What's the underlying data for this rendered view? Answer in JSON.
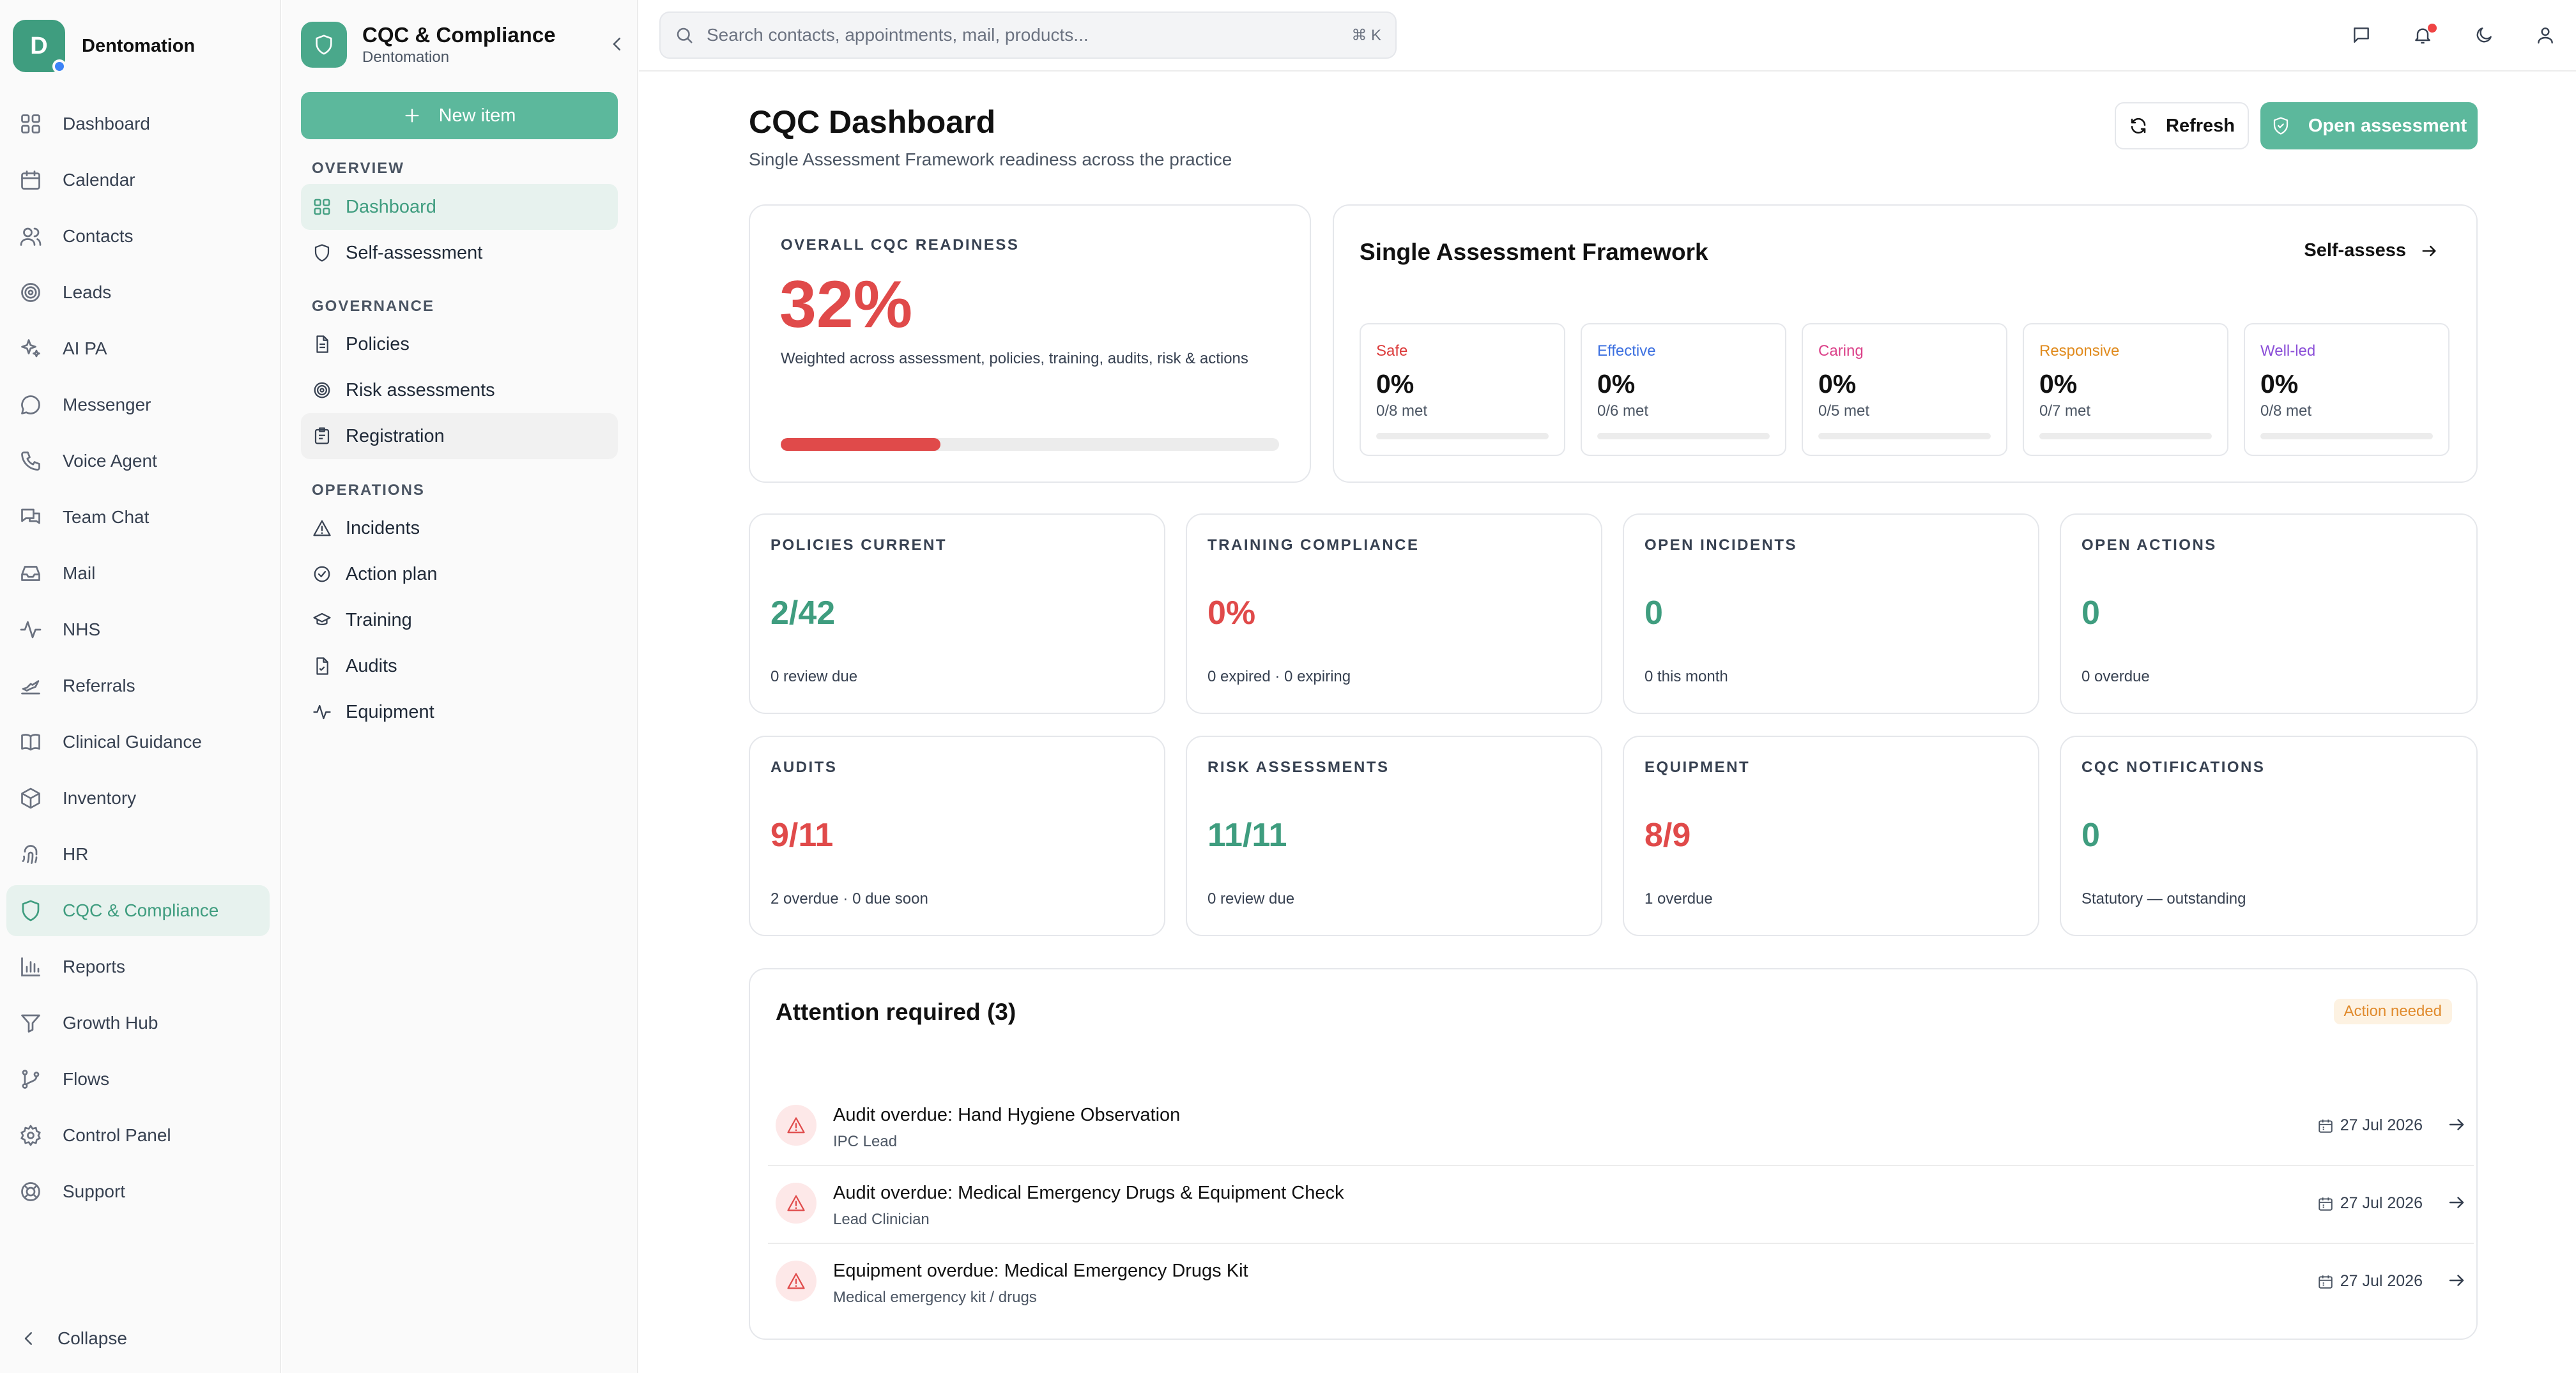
{
  "brand": {
    "initial": "D",
    "name": "Dentomation"
  },
  "sidebar": {
    "items": [
      {
        "id": "dashboard",
        "label": "Dashboard",
        "icon": "grid-icon"
      },
      {
        "id": "calendar",
        "label": "Calendar",
        "icon": "calendar-icon"
      },
      {
        "id": "contacts",
        "label": "Contacts",
        "icon": "users-icon"
      },
      {
        "id": "leads",
        "label": "Leads",
        "icon": "target-icon"
      },
      {
        "id": "ai-pa",
        "label": "AI PA",
        "icon": "sparkles-icon"
      },
      {
        "id": "messenger",
        "label": "Messenger",
        "icon": "message-circle-icon"
      },
      {
        "id": "voice-agent",
        "label": "Voice Agent",
        "icon": "phone-icon"
      },
      {
        "id": "team-chat",
        "label": "Team Chat",
        "icon": "messages-icon"
      },
      {
        "id": "mail",
        "label": "Mail",
        "icon": "inbox-icon"
      },
      {
        "id": "nhs",
        "label": "NHS",
        "icon": "activity-icon"
      },
      {
        "id": "referrals",
        "label": "Referrals",
        "icon": "send-icon"
      },
      {
        "id": "clinical-guidance",
        "label": "Clinical Guidance",
        "icon": "book-icon"
      },
      {
        "id": "inventory",
        "label": "Inventory",
        "icon": "package-icon"
      },
      {
        "id": "hr",
        "label": "HR",
        "icon": "fingerprint-icon"
      },
      {
        "id": "cqc-compliance",
        "label": "CQC & Compliance",
        "icon": "shield-icon",
        "active": true
      },
      {
        "id": "reports",
        "label": "Reports",
        "icon": "bar-chart-icon"
      },
      {
        "id": "growth-hub",
        "label": "Growth Hub",
        "icon": "funnel-icon"
      },
      {
        "id": "flows",
        "label": "Flows",
        "icon": "git-branch-icon"
      },
      {
        "id": "control-panel",
        "label": "Control Panel",
        "icon": "gear-icon"
      },
      {
        "id": "support",
        "label": "Support",
        "icon": "lifebuoy-icon"
      }
    ],
    "collapse_label": "Collapse"
  },
  "panel": {
    "title": "CQC & Compliance",
    "subtitle": "Dentomation",
    "new_item_label": "New item",
    "sections": [
      {
        "label": "OVERVIEW",
        "items": [
          {
            "label": "Dashboard",
            "icon": "grid-icon",
            "active": true
          },
          {
            "label": "Self-assessment",
            "icon": "shield-icon"
          }
        ]
      },
      {
        "label": "GOVERNANCE",
        "items": [
          {
            "label": "Policies",
            "icon": "file-text-icon"
          },
          {
            "label": "Risk assessments",
            "icon": "target-icon"
          },
          {
            "label": "Registration",
            "icon": "clipboard-icon",
            "hover": true
          }
        ]
      },
      {
        "label": "OPERATIONS",
        "items": [
          {
            "label": "Incidents",
            "icon": "alert-triangle-icon"
          },
          {
            "label": "Action plan",
            "icon": "check-circle-icon"
          },
          {
            "label": "Training",
            "icon": "graduation-cap-icon"
          },
          {
            "label": "Audits",
            "icon": "file-check-icon"
          },
          {
            "label": "Equipment",
            "icon": "activity-icon"
          }
        ]
      }
    ]
  },
  "search": {
    "placeholder": "Search contacts, appointments, mail, products...",
    "shortcut": "⌘ K"
  },
  "header": {
    "title": "CQC Dashboard",
    "subtitle": "Single Assessment Framework readiness across the practice",
    "refresh_label": "Refresh",
    "open_label": "Open assessment"
  },
  "readiness": {
    "label": "OVERALL CQC READINESS",
    "value": "32%",
    "percent": 32,
    "description": "Weighted across assessment, policies, training, audits, risk & actions",
    "color": "#e04a4a"
  },
  "saf": {
    "title": "Single Assessment Framework",
    "link_label": "Self-assess",
    "domains": [
      {
        "name": "Safe",
        "value": "0%",
        "met": "0/8 met",
        "percent": 0,
        "color": "#dc3b3b"
      },
      {
        "name": "Effective",
        "value": "0%",
        "met": "0/6 met",
        "percent": 0,
        "color": "#3b6fe0"
      },
      {
        "name": "Caring",
        "value": "0%",
        "met": "0/5 met",
        "percent": 0,
        "color": "#db3f88"
      },
      {
        "name": "Responsive",
        "value": "0%",
        "met": "0/7 met",
        "percent": 0,
        "color": "#e08a1c"
      },
      {
        "name": "Well-led",
        "value": "0%",
        "met": "0/8 met",
        "percent": 0,
        "color": "#8b4fd8"
      }
    ]
  },
  "stats": [
    {
      "label": "POLICIES CURRENT",
      "value": "2/42",
      "note": "0 review due",
      "color": "#3f9d7f"
    },
    {
      "label": "TRAINING COMPLIANCE",
      "value": "0%",
      "note": "0 expired · 0 expiring",
      "color": "#e04a4a"
    },
    {
      "label": "OPEN INCIDENTS",
      "value": "0",
      "note": "0 this month",
      "color": "#3f9d7f"
    },
    {
      "label": "OPEN ACTIONS",
      "value": "0",
      "note": "0 overdue",
      "color": "#3f9d7f"
    },
    {
      "label": "AUDITS",
      "value": "9/11",
      "note": "2 overdue · 0 due soon",
      "color": "#e04a4a"
    },
    {
      "label": "RISK ASSESSMENTS",
      "value": "11/11",
      "note": "0 review due",
      "color": "#3f9d7f"
    },
    {
      "label": "EQUIPMENT",
      "value": "8/9",
      "note": "1 overdue",
      "color": "#e04a4a"
    },
    {
      "label": "CQC NOTIFICATIONS",
      "value": "0",
      "note": "Statutory — outstanding",
      "color": "#3f9d7f"
    }
  ],
  "attention": {
    "title": "Attention required (3)",
    "badge": "Action needed",
    "items": [
      {
        "title": "Audit overdue: Hand Hygiene Observation",
        "sub": "IPC Lead",
        "date": "27 Jul 2026"
      },
      {
        "title": "Audit overdue: Medical Emergency Drugs & Equipment Check",
        "sub": "Lead Clinician",
        "date": "27 Jul 2026"
      },
      {
        "title": "Equipment overdue: Medical Emergency Drugs Kit",
        "sub": "Medical emergency kit / drugs",
        "date": "27 Jul 2026"
      }
    ]
  }
}
